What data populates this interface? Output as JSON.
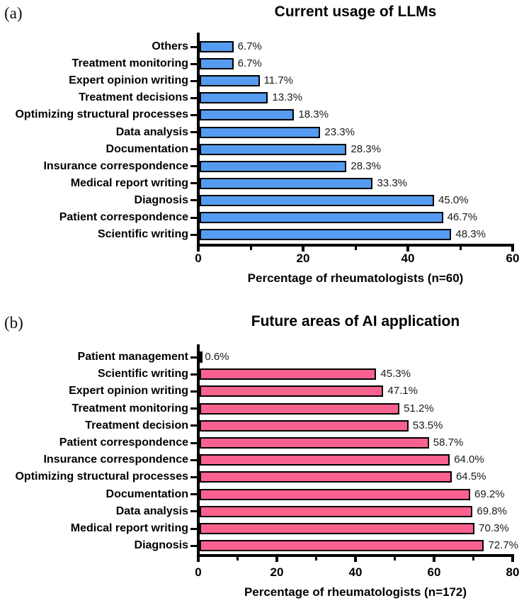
{
  "figure": {
    "background": "#ffffff",
    "text_color": "#000000"
  },
  "chart_data": [
    {
      "type": "bar",
      "orientation": "horizontal",
      "panel_label": "(a)",
      "title": "Current usage of LLMs",
      "xlabel": "Percentage of rheumatologists (n=60)",
      "xlim": [
        0,
        60
      ],
      "x_major_ticks": [
        0,
        20,
        40,
        60
      ],
      "x_minor_ticks": [
        10,
        30,
        50
      ],
      "bar_color": "#559bf0",
      "bar_border_color": "#000000",
      "grid": "off",
      "legend": "none",
      "categories": [
        "Others",
        "Treatment monitoring",
        "Expert opinion writing",
        "Treatment decisions",
        "Optimizing structural processes",
        "Data analysis",
        "Documentation",
        "Insurance correspondence",
        "Medical report writing",
        "Diagnosis",
        "Patient correspondence",
        "Scientific writing"
      ],
      "values": [
        6.7,
        6.7,
        11.7,
        13.3,
        18.3,
        23.3,
        28.3,
        28.3,
        33.3,
        45.0,
        46.7,
        48.3
      ],
      "value_labels": [
        "6.7%",
        "6.7%",
        "11.7%",
        "13.3%",
        "18.3%",
        "23.3%",
        "28.3%",
        "28.3%",
        "33.3%",
        "45.0%",
        "46.7%",
        "48.3%"
      ]
    },
    {
      "type": "bar",
      "orientation": "horizontal",
      "panel_label": "(b)",
      "title": "Future areas of AI application",
      "xlabel": "Percentage of rheumatologists (n=172)",
      "xlim": [
        0,
        80
      ],
      "x_major_ticks": [
        0,
        20,
        40,
        60,
        80
      ],
      "x_minor_ticks": [
        10,
        30,
        50,
        70
      ],
      "bar_color": "#f9618f",
      "bar_border_color": "#000000",
      "grid": "off",
      "legend": "none",
      "categories": [
        "Patient management",
        "Scientific writing",
        "Expert opinion writing",
        "Treatment monitoring",
        "Treatment decision",
        "Patient correspondence",
        "Insurance correspondence",
        "Optimizing structural processes",
        "Documentation",
        "Data analysis",
        "Medical report writing",
        "Diagnosis"
      ],
      "values": [
        0.6,
        45.3,
        47.1,
        51.2,
        53.5,
        58.7,
        64.0,
        64.5,
        69.2,
        69.8,
        70.3,
        72.7
      ],
      "value_labels": [
        "0.6%",
        "45.3%",
        "47.1%",
        "51.2%",
        "53.5%",
        "58.7%",
        "64.0%",
        "64.5%",
        "69.2%",
        "69.8%",
        "70.3%",
        "72.7%"
      ]
    }
  ]
}
